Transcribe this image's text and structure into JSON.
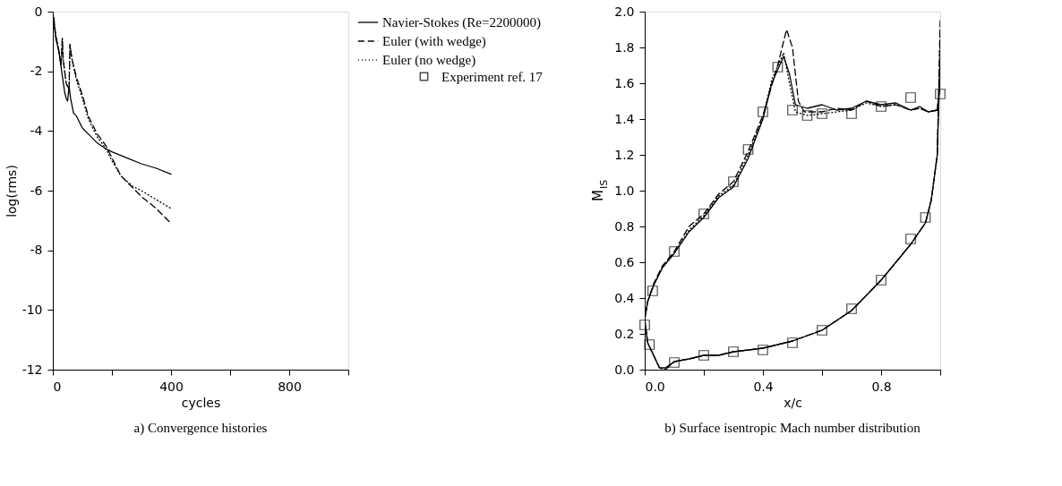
{
  "chart_data": [
    {
      "type": "line",
      "title": "a) Convergence histories",
      "xlabel": "cycles",
      "ylabel": "log(rms)",
      "legend": "right",
      "xlim": [
        0,
        1000
      ],
      "xticks": [
        0,
        {
          "value": 200,
          "label": null
        },
        400,
        {
          "value": 600,
          "label": null
        },
        800,
        {
          "value": 1000,
          "label": null
        }
      ],
      "ylim": [
        -12,
        0
      ],
      "yticks": [
        -12,
        -10,
        -8,
        -6,
        -4,
        -2,
        0
      ],
      "grid": false,
      "series": [
        {
          "name": "Navier-Stokes (Re=2200000)",
          "color": "#000000",
          "line_style": "solid",
          "x": [
            3,
            10,
            20,
            30,
            40,
            45,
            50,
            55,
            60,
            70,
            80,
            100,
            120,
            150,
            180,
            200,
            250,
            300,
            350,
            400
          ],
          "values": [
            -0.3,
            -0.9,
            -1.3,
            -2.0,
            -2.7,
            -2.9,
            -3.0,
            -2.5,
            -2.9,
            -3.4,
            -3.5,
            -3.9,
            -4.1,
            -4.4,
            -4.6,
            -4.7,
            -4.9,
            -5.1,
            -5.25,
            -5.45
          ]
        },
        {
          "name": "Euler (with wedge)",
          "color": "#000000",
          "line_style": "dashed",
          "x": [
            3,
            10,
            20,
            28,
            32,
            35,
            45,
            55,
            58,
            65,
            80,
            100,
            120,
            150,
            180,
            200,
            230,
            270,
            300,
            350,
            400
          ],
          "values": [
            -0.2,
            -0.8,
            -1.3,
            -1.8,
            -0.9,
            -1.6,
            -2.4,
            -2.6,
            -1.1,
            -1.6,
            -2.2,
            -2.8,
            -3.5,
            -4.1,
            -4.5,
            -4.9,
            -5.5,
            -5.9,
            -6.2,
            -6.6,
            -7.1
          ]
        },
        {
          "name": "Euler (no wedge)",
          "color": "#000000",
          "line_style": "dotted",
          "x": [
            3,
            10,
            20,
            28,
            32,
            35,
            45,
            55,
            58,
            65,
            80,
            100,
            120,
            150,
            180,
            200,
            230,
            270,
            300,
            350,
            400
          ],
          "values": [
            -0.2,
            -0.8,
            -1.3,
            -1.8,
            -0.9,
            -1.6,
            -2.4,
            -2.6,
            -1.1,
            -1.6,
            -2.3,
            -2.9,
            -3.6,
            -4.2,
            -4.6,
            -5.0,
            -5.5,
            -5.85,
            -6.0,
            -6.3,
            -6.6
          ]
        }
      ]
    },
    {
      "type": "line",
      "title": "b) Surface isentropic Mach number distribution",
      "xlabel": "x/c",
      "ylabel": "M$_{IS}$",
      "xlim": [
        0,
        1
      ],
      "xticks": [
        {
          "value": 0,
          "label": "0.0"
        },
        {
          "value": 0.2,
          "label": null
        },
        0.4,
        {
          "value": 0.6,
          "label": null
        },
        0.8,
        {
          "value": 1,
          "label": null
        }
      ],
      "ylim": [
        0,
        2
      ],
      "yticks": [
        {
          "value": 0,
          "label": "0.0"
        },
        0.2,
        0.4,
        0.6,
        0.8,
        {
          "value": 1,
          "label": "1.0"
        },
        1.2,
        1.4,
        1.6,
        1.8,
        {
          "value": 2,
          "label": "2.0"
        }
      ],
      "grid": false,
      "legend": "left",
      "series": [
        {
          "name": "Navier-Stokes (Re=2200000)",
          "color": "#000000",
          "line_style": "solid",
          "x": [
            1.0,
            0.99,
            0.97,
            0.95,
            0.9,
            0.8,
            0.7,
            0.6,
            0.5,
            0.4,
            0.3,
            0.25,
            0.2,
            0.15,
            0.1,
            0.07,
            0.05,
            0.03,
            0.01,
            0.0,
            0.01,
            0.03,
            0.06,
            0.1,
            0.15,
            0.2,
            0.25,
            0.3,
            0.35,
            0.4,
            0.43,
            0.47,
            0.49,
            0.51,
            0.55,
            0.6,
            0.65,
            0.7,
            0.75,
            0.8,
            0.85,
            0.9,
            0.93,
            0.96,
            0.99,
            1.0
          ],
          "values": [
            1.75,
            1.2,
            0.95,
            0.82,
            0.7,
            0.5,
            0.33,
            0.22,
            0.16,
            0.12,
            0.1,
            0.08,
            0.08,
            0.06,
            0.045,
            0.01,
            0.01,
            0.08,
            0.15,
            0.28,
            0.38,
            0.47,
            0.57,
            0.65,
            0.77,
            0.85,
            0.96,
            1.02,
            1.18,
            1.4,
            1.6,
            1.75,
            1.65,
            1.48,
            1.46,
            1.48,
            1.45,
            1.46,
            1.5,
            1.48,
            1.49,
            1.45,
            1.47,
            1.44,
            1.45,
            1.6
          ]
        },
        {
          "name": "Euler (with wedge)",
          "color": "#000000",
          "line_style": "dashed",
          "x": [
            1.0,
            0.99,
            0.97,
            0.95,
            0.9,
            0.8,
            0.7,
            0.6,
            0.5,
            0.4,
            0.3,
            0.25,
            0.2,
            0.15,
            0.1,
            0.07,
            0.05,
            0.03,
            0.01,
            0.0,
            0.01,
            0.03,
            0.06,
            0.1,
            0.15,
            0.2,
            0.25,
            0.3,
            0.35,
            0.4,
            0.45,
            0.48,
            0.5,
            0.52,
            0.54,
            0.6,
            0.65,
            0.7,
            0.75,
            0.8,
            0.85,
            0.9,
            0.93,
            0.96,
            0.99,
            1.0
          ],
          "values": [
            1.95,
            1.2,
            0.95,
            0.82,
            0.7,
            0.5,
            0.33,
            0.22,
            0.16,
            0.12,
            0.1,
            0.08,
            0.08,
            0.06,
            0.045,
            0.0,
            0.01,
            0.08,
            0.15,
            0.28,
            0.38,
            0.48,
            0.58,
            0.66,
            0.8,
            0.87,
            0.98,
            1.05,
            1.22,
            1.42,
            1.7,
            1.9,
            1.8,
            1.5,
            1.44,
            1.44,
            1.46,
            1.45,
            1.5,
            1.47,
            1.48,
            1.45,
            1.46,
            1.44,
            1.45,
            1.6
          ]
        },
        {
          "name": "Euler (no wedge)",
          "color": "#000000",
          "line_style": "dotted",
          "x": [
            1.0,
            0.99,
            0.97,
            0.95,
            0.9,
            0.8,
            0.7,
            0.6,
            0.5,
            0.4,
            0.3,
            0.25,
            0.2,
            0.15,
            0.1,
            0.07,
            0.05,
            0.03,
            0.01,
            0.0,
            0.01,
            0.03,
            0.06,
            0.1,
            0.15,
            0.2,
            0.25,
            0.3,
            0.35,
            0.4,
            0.43,
            0.47,
            0.49,
            0.51,
            0.55,
            0.6,
            0.65,
            0.7,
            0.75,
            0.8,
            0.85,
            0.9,
            0.93,
            0.96,
            0.99,
            1.0
          ],
          "values": [
            1.9,
            1.2,
            0.95,
            0.82,
            0.7,
            0.5,
            0.33,
            0.22,
            0.16,
            0.12,
            0.1,
            0.08,
            0.08,
            0.06,
            0.045,
            0.0,
            0.01,
            0.08,
            0.15,
            0.28,
            0.38,
            0.47,
            0.57,
            0.65,
            0.78,
            0.86,
            0.97,
            1.03,
            1.2,
            1.41,
            1.62,
            1.77,
            1.6,
            1.44,
            1.42,
            1.43,
            1.44,
            1.45,
            1.49,
            1.47,
            1.48,
            1.45,
            1.46,
            1.44,
            1.45,
            1.6
          ]
        },
        {
          "name": "Experiment ref. 17",
          "type": "scatter",
          "marker": "square",
          "color": "#000000",
          "x": [
            0.0,
            0.016,
            0.027,
            0.1,
            0.2,
            0.3,
            0.35,
            0.4,
            0.45,
            0.5,
            0.55,
            0.6,
            0.7,
            0.8,
            0.9,
            1.0,
            0.1,
            0.2,
            0.3,
            0.4,
            0.5,
            0.6,
            0.7,
            0.8,
            0.9,
            0.95
          ],
          "values": [
            0.25,
            0.14,
            0.44,
            0.66,
            0.87,
            1.05,
            1.23,
            1.44,
            1.69,
            1.45,
            1.42,
            1.43,
            1.43,
            1.47,
            1.52,
            1.54,
            0.04,
            0.08,
            0.1,
            0.11,
            0.15,
            0.22,
            0.34,
            0.5,
            0.73,
            0.85
          ]
        }
      ]
    }
  ]
}
